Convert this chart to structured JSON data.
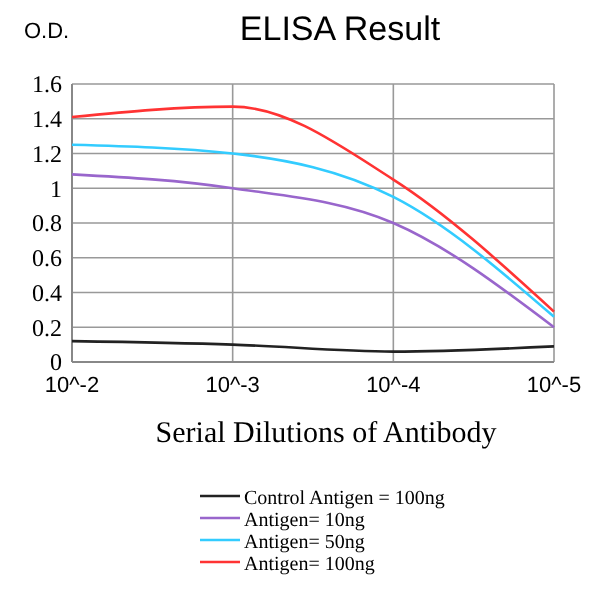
{
  "chart_data": {
    "type": "line",
    "title": "ELISA Result",
    "ylabel": "O.D.",
    "xlabel": "Serial Dilutions of Antibody",
    "categories": [
      "10^-2",
      "10^-3",
      "10^-4",
      "10^-5"
    ],
    "series": [
      {
        "name": "Control Antigen = 100ng",
        "color": "#222222",
        "values": [
          0.12,
          0.1,
          0.06,
          0.09
        ]
      },
      {
        "name": "Antigen= 10ng",
        "color": "#9966cc",
        "values": [
          1.08,
          1.0,
          0.8,
          0.2
        ]
      },
      {
        "name": "Antigen= 50ng",
        "color": "#33ccff",
        "values": [
          1.25,
          1.2,
          0.95,
          0.26
        ]
      },
      {
        "name": "Antigen= 100ng",
        "color": "#ff3333",
        "values": [
          1.41,
          1.47,
          1.05,
          0.29
        ]
      }
    ],
    "ylim": [
      0,
      1.6
    ],
    "yticks": [
      0,
      0.2,
      0.4,
      0.6,
      0.8,
      1,
      1.2,
      1.4,
      1.6
    ],
    "grid": true,
    "legend": "bottom",
    "marker": "none",
    "line_style": "solid"
  }
}
